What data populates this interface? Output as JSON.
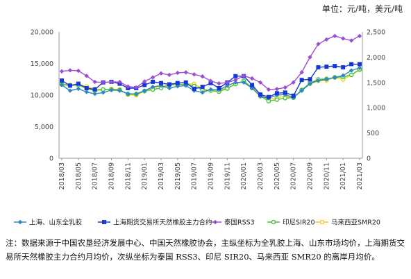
{
  "unit_label": "单位：元/吨，美元/吨",
  "note": "注：数据来源于中国农垦经济发展中心、中国天然橡胶协会，主纵坐标为全乳胶上海、山东市场均价，上海期货交易所天然橡胶主力合约月均价，次纵坐标为泰国 RSS3、印尼 SIR20、马来西亚 SMR20 的离岸月均价。",
  "colors": {
    "shanghai_shandong": "#2e86c9",
    "shfe": "#1537d6",
    "rss3": "#9b4fd0",
    "sir20": "#44c434",
    "smr20": "#f1cc21"
  },
  "chart_data": {
    "type": "line",
    "x": [
      "2018/03",
      "2018/04",
      "2018/05",
      "2018/06",
      "2018/07",
      "2018/08",
      "2018/09",
      "2018/10",
      "2018/11",
      "2018/12",
      "2019/01",
      "2019/02",
      "2019/03",
      "2019/04",
      "2019/05",
      "2019/06",
      "2019/07",
      "2019/08",
      "2019/09",
      "2019/10",
      "2019/11",
      "2019/12",
      "2020/01",
      "2020/02",
      "2020/03",
      "2020/04",
      "2020/05",
      "2020/06",
      "2020/07",
      "2020/08",
      "2020/09",
      "2020/10",
      "2020/11",
      "2020/12",
      "2021/01",
      "2021/02",
      "2021/03"
    ],
    "x_tick_labels": [
      "2018/03",
      "2018/05",
      "2018/07",
      "2018/09",
      "2018/11",
      "2019/01",
      "2019/03",
      "2019/05",
      "2019/07",
      "2019/09",
      "2019/11",
      "2020/01",
      "2020/03",
      "2020/05",
      "2020/07",
      "2020/09",
      "2020/11",
      "2021/01",
      "2021/03"
    ],
    "y_left": {
      "range": [
        0,
        20000
      ],
      "ticks": [
        "0",
        "5,000",
        "10,000",
        "15,000",
        "20,000"
      ]
    },
    "y_right": {
      "range": [
        0,
        2500
      ],
      "ticks": [
        "0",
        "500",
        "1,000",
        "1,500",
        "2,000",
        "2,500"
      ]
    },
    "grid": false,
    "legend_position": "bottom",
    "series": [
      {
        "name": "上海、山东全乳胶",
        "axis": "left",
        "marker": "diamond",
        "values": [
          11600,
          10700,
          11000,
          10500,
          10200,
          10400,
          10800,
          10700,
          10200,
          10200,
          10700,
          11300,
          11500,
          11100,
          11400,
          11500,
          10700,
          10400,
          10900,
          10800,
          11500,
          12000,
          12000,
          11100,
          9800,
          9500,
          10000,
          10100,
          9600,
          10700,
          11800,
          12300,
          12500,
          12800,
          13100,
          13900,
          14300
        ]
      },
      {
        "name": "上海期货交易所天然橡胶主力合约",
        "axis": "left",
        "marker": "square",
        "values": [
          12300,
          11500,
          11800,
          11100,
          10900,
          12000,
          12100,
          11800,
          11100,
          11100,
          11600,
          12100,
          11900,
          11700,
          11900,
          12000,
          11000,
          11300,
          11900,
          11100,
          12000,
          13000,
          13000,
          11600,
          10100,
          9700,
          10300,
          10400,
          9900,
          12400,
          12500,
          14400,
          14500,
          14600,
          14400,
          14900,
          14900
        ]
      },
      {
        "name": "泰国RSS3",
        "axis": "right",
        "marker": "diamond",
        "values": [
          1720,
          1740,
          1730,
          1630,
          1510,
          1500,
          1510,
          1510,
          1420,
          1400,
          1520,
          1600,
          1680,
          1650,
          1690,
          1700,
          1660,
          1620,
          1530,
          1480,
          1500,
          1550,
          1630,
          1580,
          1500,
          1360,
          1370,
          1400,
          1500,
          1700,
          2000,
          2260,
          2350,
          2420,
          2370,
          2330,
          2420
        ]
      },
      {
        "name": "印尼SIR20",
        "axis": "right",
        "marker": "circle",
        "values": [
          1460,
          1440,
          1450,
          1380,
          1340,
          1360,
          1360,
          1350,
          1270,
          1270,
          1330,
          1360,
          1390,
          1450,
          1470,
          1450,
          1430,
          1350,
          1340,
          1320,
          1380,
          1470,
          1530,
          1390,
          1230,
          1130,
          1160,
          1190,
          1200,
          1350,
          1490,
          1560,
          1570,
          1600,
          1610,
          1650,
          1760
        ]
      },
      {
        "name": "马来西亚SMR20",
        "axis": "right",
        "marker": "circle",
        "values": [
          1470,
          1450,
          1460,
          1420,
          1370,
          1360,
          1370,
          1360,
          1260,
          1250,
          1330,
          1380,
          1440,
          1450,
          1460,
          1470,
          1470,
          1370,
          1340,
          1350,
          1390,
          1470,
          1520,
          1410,
          1260,
          1160,
          1200,
          1220,
          1210,
          1350,
          1470,
          1530,
          1540,
          1600,
          1560,
          1650,
          1750
        ]
      }
    ]
  }
}
